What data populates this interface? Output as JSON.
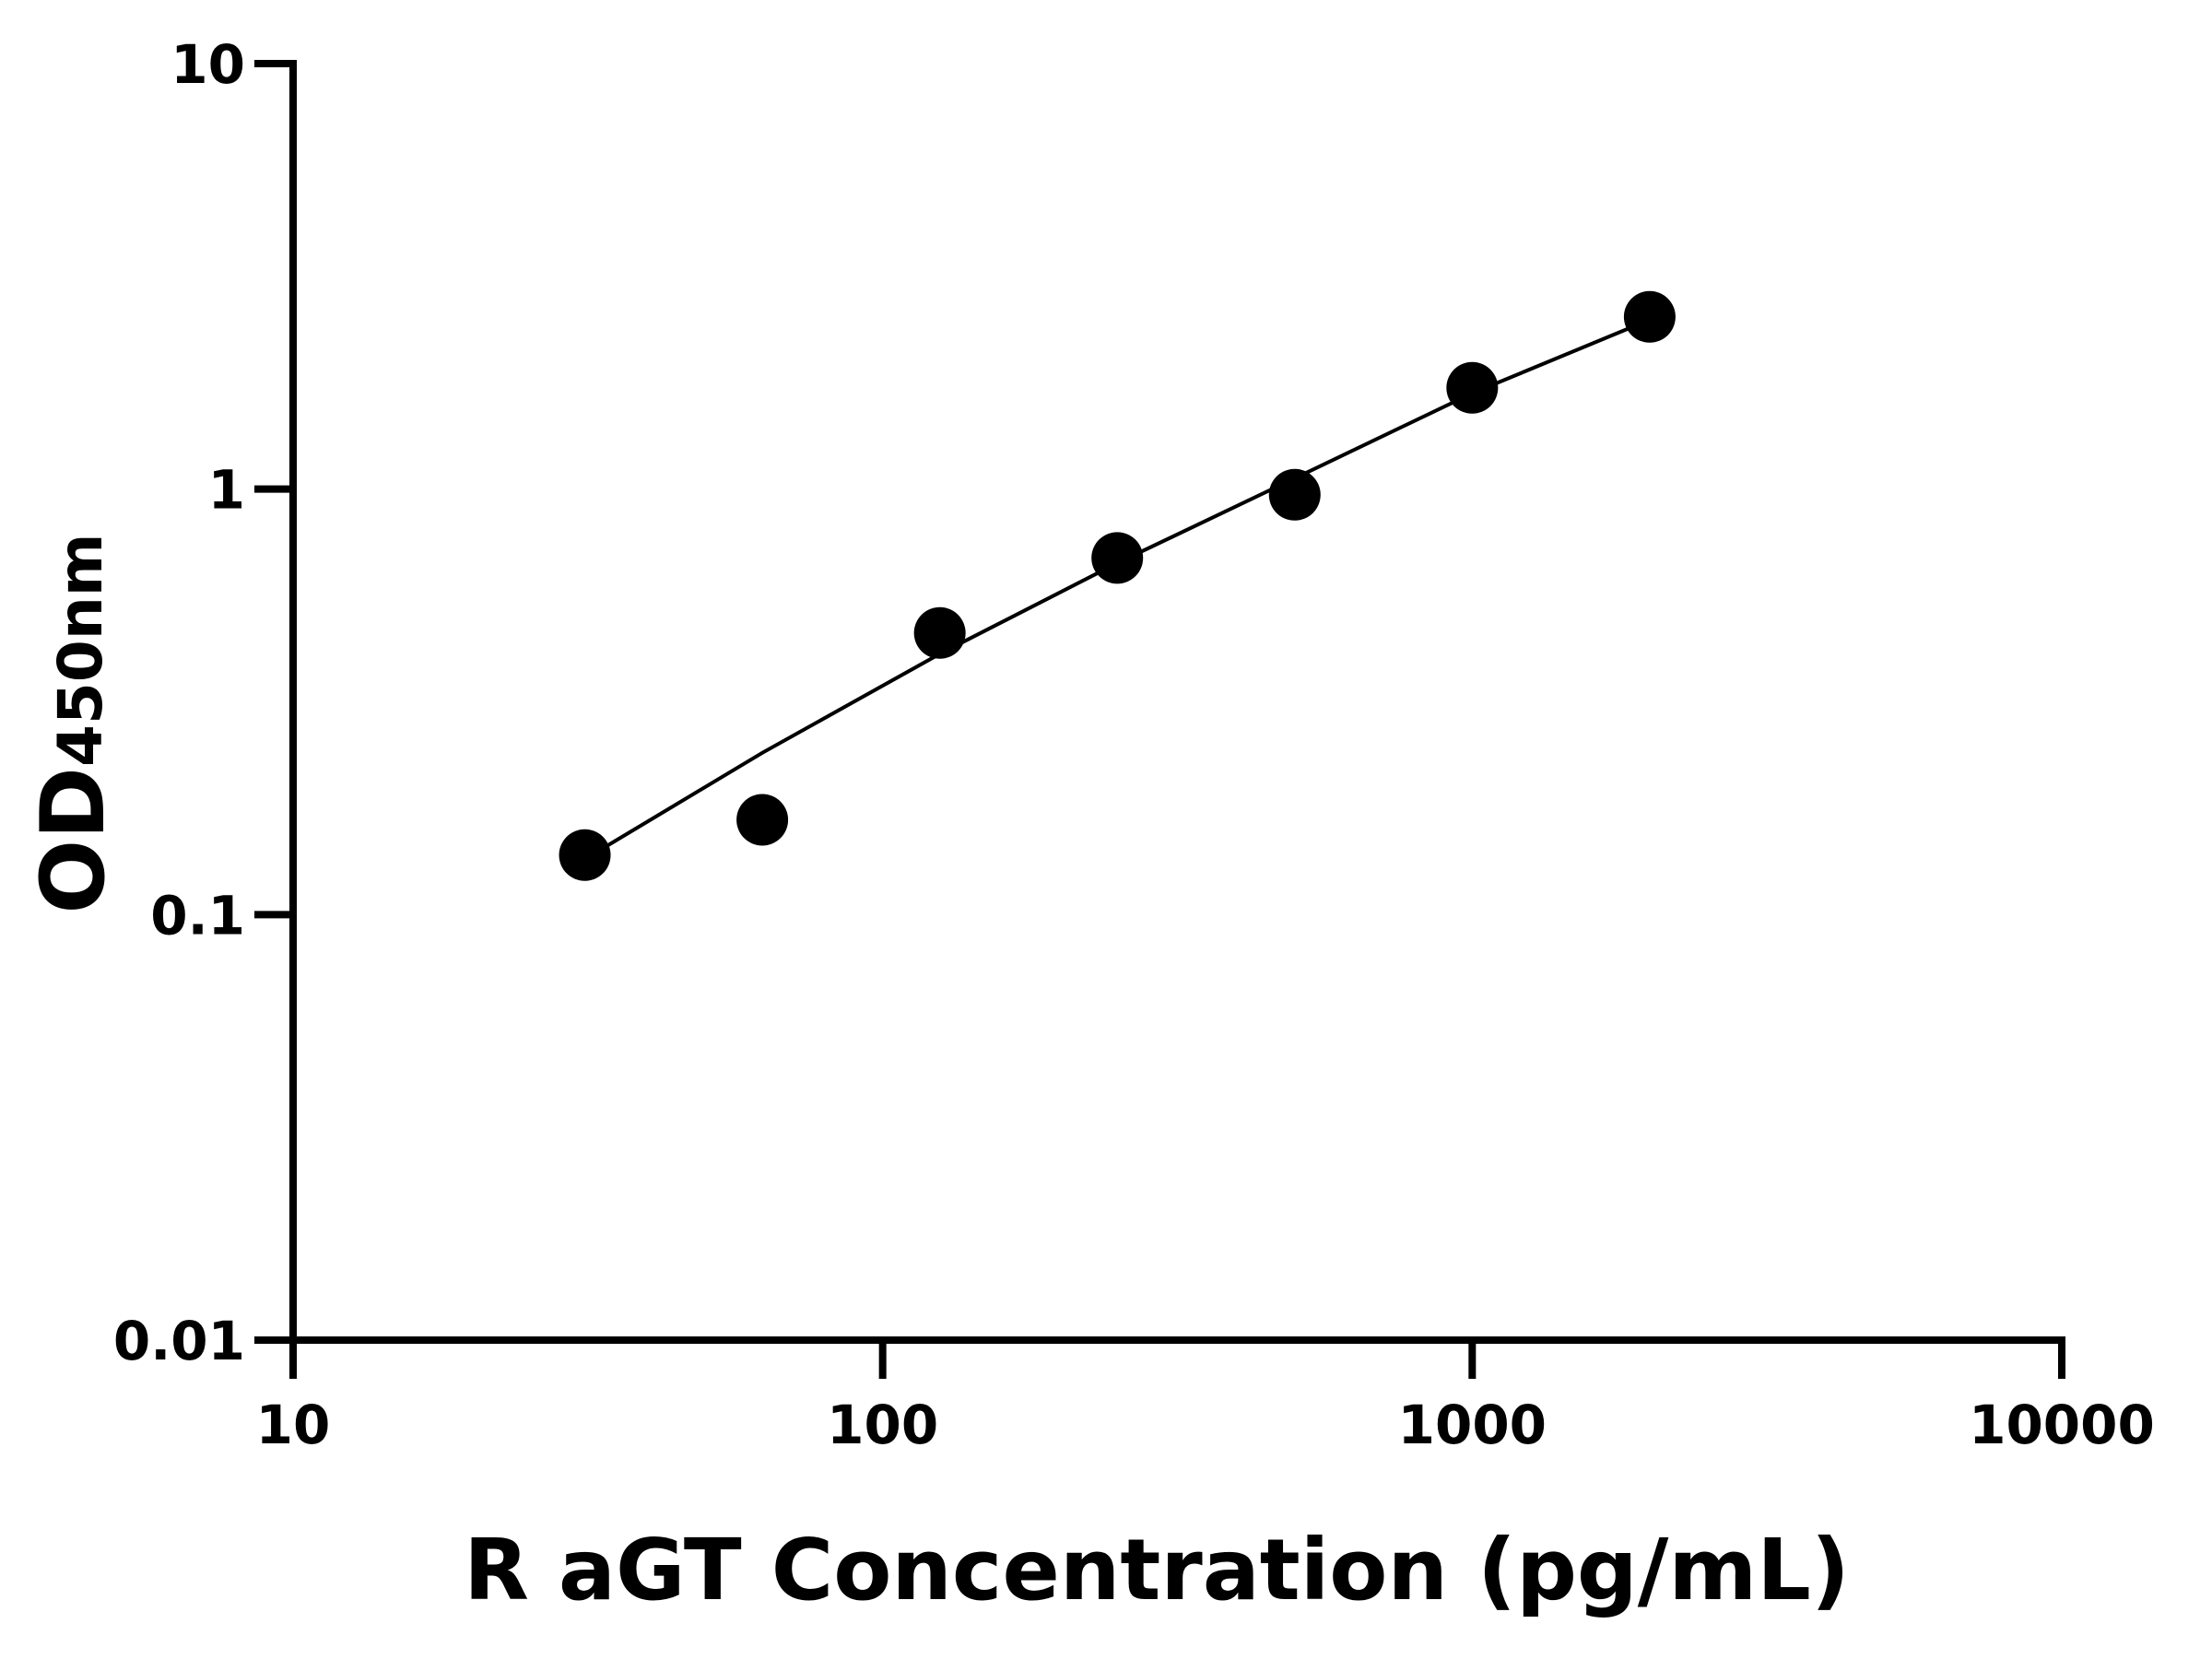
{
  "chart_data": {
    "type": "scatter",
    "x_label": "R aGT Concentration (pg/mL)",
    "y_label": "OD",
    "y_label_subscript": "450nm",
    "x_log": true,
    "y_log": true,
    "xlim": [
      10,
      10000
    ],
    "ylim": [
      0.01,
      10
    ],
    "xticks": [
      10,
      100,
      1000,
      10000
    ],
    "yticks": [
      0.01,
      0.1,
      1,
      10
    ],
    "x": [
      31.25,
      62.5,
      125,
      250,
      500,
      1000,
      2000
    ],
    "series": [
      {
        "color": "#000000",
        "marker": "circle",
        "values": [
          0.138,
          0.167,
          0.459,
          0.689,
          0.97,
          1.73,
          2.54
        ]
      },
      {
        "color": "#000000",
        "marker": "none",
        "line": true,
        "values": [
          0.135,
          0.24,
          0.41,
          0.67,
          1.06,
          1.68,
          2.5
        ]
      }
    ]
  }
}
